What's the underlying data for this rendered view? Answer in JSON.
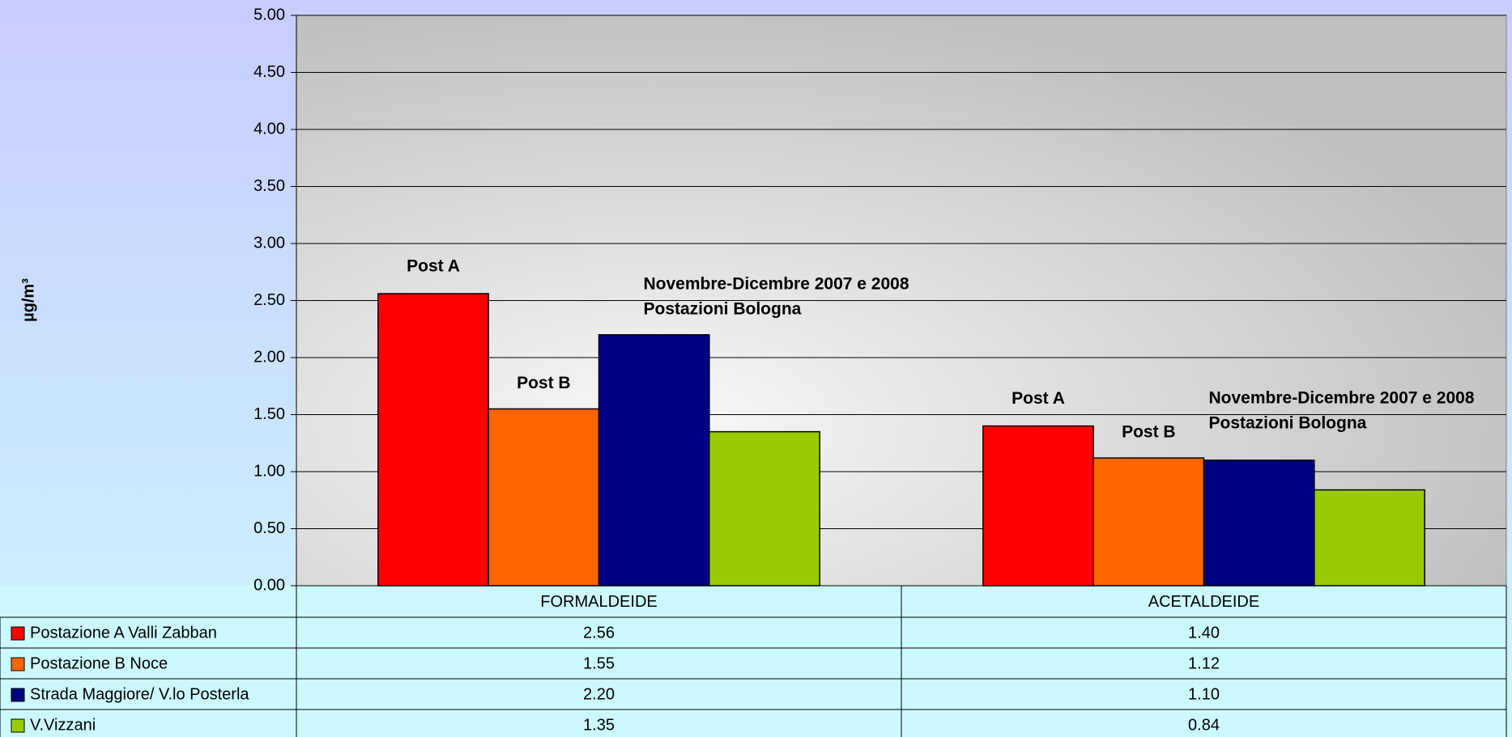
{
  "chart_data": {
    "type": "bar",
    "y_label": "µg/m³",
    "categories": [
      "FORMALDEIDE",
      "ACETALDEIDE"
    ],
    "series": [
      {
        "name": "Postazione A Valli Zabban",
        "color": "#ff0000",
        "values": [
          2.56,
          1.4
        ],
        "value_labels": [
          "2.56",
          "1.40"
        ]
      },
      {
        "name": "Postazione B Noce",
        "color": "#ff6600",
        "values": [
          1.55,
          1.12
        ],
        "value_labels": [
          "1.55",
          "1.12"
        ]
      },
      {
        "name": "Strada Maggiore/ V.lo Posterla",
        "color": "#000080",
        "values": [
          2.2,
          1.1
        ],
        "value_labels": [
          "2.20",
          "1.10"
        ]
      },
      {
        "name": "V.Vizzani",
        "color": "#99cc00",
        "values": [
          1.35,
          0.84
        ],
        "value_labels": [
          "1.35",
          "0.84"
        ]
      }
    ],
    "annotations": [
      [
        "Post A",
        "Post B",
        "Novembre-Dicembre 2007 e 2008",
        "Postazioni Bologna"
      ],
      [
        "Post A",
        "Post B",
        "Novembre-Dicembre 2007 e 2008",
        "Postazioni Bologna"
      ]
    ],
    "ylim": [
      0,
      5
    ],
    "yticks": [
      {
        "value": 0,
        "label": "0.00"
      },
      {
        "value": 0.5,
        "label": "0.50"
      },
      {
        "value": 1,
        "label": "1.00"
      },
      {
        "value": 1.5,
        "label": "1.50"
      },
      {
        "value": 2,
        "label": "2.00"
      },
      {
        "value": 2.5,
        "label": "2.50"
      },
      {
        "value": 3,
        "label": "3.00"
      },
      {
        "value": 3.5,
        "label": "3.50"
      },
      {
        "value": 4,
        "label": "4.00"
      },
      {
        "value": 4.5,
        "label": "4.50"
      },
      {
        "value": 5,
        "label": "5.00"
      }
    ],
    "grid": true
  }
}
